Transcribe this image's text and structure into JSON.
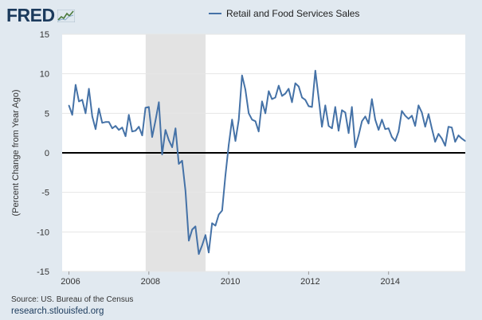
{
  "logo": {
    "text": "FRED"
  },
  "legend": {
    "label": "Retail and Food Services Sales",
    "color": "#4572a7"
  },
  "footer": {
    "source": "Source: US. Bureau of the Census",
    "url": "research.stlouisfed.org"
  },
  "chart_data": {
    "type": "line",
    "title": "",
    "xlabel": "",
    "ylabel": "(Percent Change from Year Ago)",
    "ylim": [
      -15,
      15
    ],
    "yticks": [
      "15",
      "10",
      "5",
      "0",
      "-5",
      "-10",
      "-15"
    ],
    "xlim": [
      2005.83,
      2015.92
    ],
    "xticks": [
      "2006",
      "2008",
      "2010",
      "2012",
      "2014"
    ],
    "recession": {
      "start": 2007.92,
      "end": 2009.42,
      "color": "#e3e3e3"
    },
    "zero_line": true,
    "series": [
      {
        "name": "Retail and Food Services Sales",
        "color": "#4572a7",
        "start_year": 2006,
        "start_month": 1,
        "values": [
          6.0,
          4.8,
          8.6,
          6.5,
          6.7,
          5.0,
          8.1,
          4.6,
          3.0,
          5.6,
          3.8,
          3.9,
          3.9,
          3.1,
          3.4,
          2.9,
          3.2,
          2.1,
          4.8,
          2.7,
          2.8,
          3.3,
          2.2,
          5.7,
          5.8,
          2.0,
          4.1,
          6.4,
          -0.2,
          2.9,
          1.6,
          0.7,
          3.1,
          -1.4,
          -1.0,
          -4.8,
          -11.1,
          -9.7,
          -9.3,
          -12.8,
          -11.7,
          -10.4,
          -12.6,
          -8.9,
          -9.2,
          -7.8,
          -7.3,
          -2.9,
          1.0,
          4.2,
          1.5,
          4.2,
          9.8,
          8.0,
          5.0,
          4.2,
          4.0,
          2.7,
          6.5,
          5.0,
          7.8,
          6.8,
          7.0,
          8.5,
          7.2,
          7.5,
          8.1,
          6.4,
          8.8,
          8.4,
          7.0,
          6.7,
          5.9,
          5.8,
          10.4,
          6.9,
          3.3,
          6.0,
          3.4,
          3.1,
          5.8,
          2.8,
          5.4,
          5.1,
          2.5,
          5.8,
          0.7,
          2.2,
          4.0,
          4.6,
          3.7,
          6.8,
          4.2,
          2.9,
          4.2,
          3.0,
          3.1,
          2.0,
          1.5,
          2.7,
          5.3,
          4.7,
          4.3,
          4.7,
          3.4,
          6.0,
          5.1,
          3.3,
          4.9,
          3.1,
          1.4,
          2.4,
          1.8,
          0.9,
          3.3,
          3.2,
          1.4,
          2.2,
          1.8,
          1.5
        ]
      }
    ]
  }
}
